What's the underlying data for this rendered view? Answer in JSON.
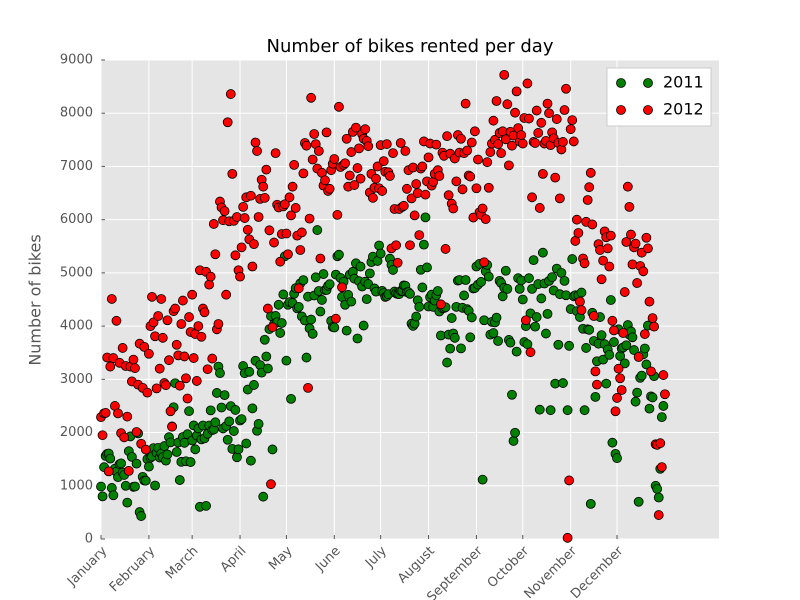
{
  "chart_data": {
    "type": "scatter",
    "title": "Number of bikes rented per day",
    "y_label": "Number of bikes",
    "xlim": [
      0,
      400
    ],
    "ylim": [
      0,
      9000
    ],
    "yticks": [
      0,
      1000,
      2000,
      3000,
      4000,
      5000,
      6000,
      7000,
      8000,
      9000
    ],
    "xticks": [
      {
        "value": 0,
        "label": "January"
      },
      {
        "value": 31,
        "label": "February"
      },
      {
        "value": 59,
        "label": "March"
      },
      {
        "value": 90,
        "label": "April"
      },
      {
        "value": 120,
        "label": "May"
      },
      {
        "value": 151,
        "label": "June"
      },
      {
        "value": 181,
        "label": "July"
      },
      {
        "value": 212,
        "label": "August"
      },
      {
        "value": 243,
        "label": "September"
      },
      {
        "value": 273,
        "label": "October"
      },
      {
        "value": 304,
        "label": "November"
      },
      {
        "value": 334,
        "label": "December"
      }
    ],
    "grid": true,
    "legend": "upper right",
    "x": [
      0,
      1,
      2,
      3,
      4,
      5,
      6,
      7,
      8,
      9,
      10,
      11,
      12,
      13,
      14,
      15,
      16,
      17,
      18,
      19,
      20,
      21,
      22,
      23,
      24,
      25,
      26,
      27,
      28,
      29,
      30,
      31,
      32,
      33,
      34,
      35,
      36,
      37,
      38,
      39,
      40,
      41,
      42,
      43,
      44,
      45,
      46,
      47,
      48,
      49,
      50,
      51,
      52,
      53,
      54,
      55,
      56,
      57,
      58,
      59,
      60,
      61,
      62,
      63,
      64,
      65,
      66,
      67,
      68,
      69,
      70,
      71,
      72,
      73,
      74,
      75,
      76,
      77,
      78,
      79,
      80,
      81,
      82,
      83,
      84,
      85,
      86,
      87,
      88,
      89,
      90,
      91,
      92,
      93,
      94,
      95,
      96,
      97,
      98,
      99,
      100,
      101,
      102,
      103,
      104,
      105,
      106,
      107,
      108,
      109,
      110,
      111,
      112,
      113,
      114,
      115,
      116,
      117,
      118,
      119,
      120,
      121,
      122,
      123,
      124,
      125,
      126,
      127,
      128,
      129,
      130,
      131,
      132,
      133,
      134,
      135,
      136,
      137,
      138,
      139,
      140,
      141,
      142,
      143,
      144,
      145,
      146,
      147,
      148,
      149,
      150,
      151,
      152,
      153,
      154,
      155,
      156,
      157,
      158,
      159,
      160,
      161,
      162,
      163,
      164,
      165,
      166,
      167,
      168,
      169,
      170,
      171,
      172,
      173,
      174,
      175,
      176,
      177,
      178,
      179,
      180,
      181,
      182,
      183,
      184,
      185,
      186,
      187,
      188,
      189,
      190,
      191,
      192,
      193,
      194,
      195,
      196,
      197,
      198,
      199,
      200,
      201,
      202,
      203,
      204,
      205,
      206,
      207,
      208,
      209,
      210,
      211,
      212,
      213,
      214,
      215,
      216,
      217,
      218,
      219,
      220,
      221,
      222,
      223,
      224,
      225,
      226,
      227,
      228,
      229,
      230,
      231,
      232,
      233,
      234,
      235,
      236,
      237,
      238,
      239,
      240,
      241,
      242,
      243,
      244,
      245,
      246,
      247,
      248,
      249,
      250,
      251,
      252,
      253,
      254,
      255,
      256,
      257,
      258,
      259,
      260,
      261,
      262,
      263,
      264,
      265,
      266,
      267,
      268,
      269,
      270,
      271,
      272,
      273,
      274,
      275,
      276,
      277,
      278,
      279,
      280,
      281,
      282,
      283,
      284,
      285,
      286,
      287,
      288,
      289,
      290,
      291,
      292,
      293,
      294,
      295,
      296,
      297,
      298,
      299,
      300,
      301,
      302,
      303,
      304,
      305,
      306,
      307,
      308,
      309,
      310,
      311,
      312,
      313,
      314,
      315,
      316,
      317,
      318,
      319,
      320,
      321,
      322,
      323,
      324,
      325,
      326,
      327,
      328,
      329,
      330,
      331,
      332,
      333,
      334,
      335,
      336,
      337,
      338,
      339,
      340,
      341,
      342,
      343,
      344,
      345,
      346,
      347,
      348,
      349,
      350,
      351,
      352,
      353,
      354,
      355,
      356,
      357,
      358,
      359,
      360,
      361,
      362,
      363,
      364,
      365
    ],
    "series": [
      {
        "name": "2011",
        "color": "#008000",
        "values": [
          985,
          801,
          1349,
          1562,
          1600,
          1606,
          1510,
          959,
          822,
          1321,
          1263,
          1162,
          1406,
          1421,
          1248,
          1204,
          1000,
          683,
          1650,
          1927,
          1543,
          981,
          986,
          1416,
          1985,
          506,
          431,
          1167,
          1098,
          1096,
          1501,
          1360,
          1526,
          1550,
          1708,
          1005,
          1623,
          1712,
          1530,
          1605,
          1538,
          1746,
          1472,
          1589,
          1913,
          1815,
          2115,
          2475,
          2927,
          1635,
          1812,
          1107,
          1450,
          1917,
          1807,
          1461,
          1969,
          2402,
          1446,
          1851,
          2134,
          1685,
          1944,
          2077,
          605,
          1872,
          2133,
          1891,
          623,
          1977,
          2132,
          2417,
          2046,
          2056,
          2192,
          2744,
          3239,
          3117,
          2471,
          2077,
          2703,
          2121,
          1865,
          2210,
          2496,
          1693,
          2028,
          2425,
          1536,
          1685,
          2227,
          2252,
          3249,
          3115,
          1795,
          2808,
          3141,
          1471,
          2455,
          2895,
          3348,
          2034,
          2162,
          3267,
          3126,
          795,
          3744,
          3429,
          3204,
          3944,
          4189,
          1683,
          4036,
          4191,
          4073,
          4400,
          3872,
          4058,
          4595,
          5312,
          3351,
          4401,
          4451,
          2633,
          4433,
          4608,
          4714,
          4333,
          4362,
          4803,
          4182,
          4864,
          4105,
          3409,
          4553,
          3958,
          4123,
          3855,
          4575,
          4917,
          5805,
          4660,
          4274,
          4492,
          4978,
          4677,
          4679,
          4758,
          4788,
          4098,
          3982,
          3974,
          4968,
          5312,
          5342,
          4906,
          4548,
          4833,
          4401,
          3915,
          4586,
          4966,
          4460,
          5020,
          4891,
          5180,
          3767,
          4844,
          5119,
          4744,
          4010,
          4835,
          4507,
          4790,
          4991,
          5202,
          5305,
          4708,
          4648,
          5225,
          5515,
          5362,
          4661,
          4620,
          4549,
          4563,
          4600,
          5267,
          5150,
          5055,
          4649,
          4617,
          4603,
          4602,
          4660,
          4659,
          4765,
          4757,
          4637,
          4638,
          4606,
          4046,
          4005,
          4046,
          4179,
          4485,
          4362,
          5059,
          4727,
          5531,
          6043,
          5103,
          4368,
          4542,
          4590,
          4362,
          4479,
          4582,
          4660,
          4274,
          3824,
          4335,
          4339,
          4354,
          3315,
          3840,
          3577,
          4151,
          3861,
          3780,
          4362,
          4854,
          4867,
          3582,
          4344,
          4576,
          4866,
          4318,
          4288,
          3790,
          4163,
          4707,
          4717,
          5120,
          4780,
          5169,
          4830,
          1115,
          4110,
          5030,
          5150,
          4930,
          3840,
          4080,
          3870,
          4070,
          4160,
          3720,
          4850,
          4810,
          4560,
          4720,
          5040,
          4700,
          3740,
          3690,
          2710,
          1842,
          1996,
          3521,
          4900,
          4700,
          4860,
          4500,
          3700,
          4000,
          3660,
          4900,
          4240,
          4700,
          5240,
          3990,
          4170,
          4790,
          2430,
          4520,
          5380,
          4800,
          3860,
          4230,
          4850,
          2420,
          4920,
          4670,
          2920,
          5080,
          3650,
          4600,
          5000,
          2930,
          4850,
          4580,
          2420,
          3630,
          4320,
          5260,
          4560,
          4580,
          4280,
          4580,
          4170,
          4630,
          3950,
          2420,
          3590,
          3940,
          3930,
          660,
          4250,
          3720,
          2670,
          3340,
          3670,
          4170,
          3830,
          3370,
          3660,
          2920,
          3560,
          3460,
          4490,
          1810,
          3700,
          1600,
          1520,
          3940,
          3440,
          3580,
          3600,
          3300,
          3640,
          4020,
          3840,
          3900,
          3790,
          3550,
          2580,
          2750,
          700,
          3030,
          3070,
          3470,
          3580,
          3280,
          4010,
          2450,
          2680,
          2660,
          3060,
          1000,
          940,
          780,
          1320,
          2290,
          2500,
          null
        ]
      },
      {
        "name": "2012",
        "color": "#ff0000",
        "values": [
          2290,
          1950,
          2360,
          2370,
          3410,
          1270,
          3240,
          4510,
          3400,
          2500,
          4100,
          2360,
          3310,
          1990,
          3590,
          1910,
          3250,
          2300,
          1280,
          3240,
          2960,
          3370,
          3210,
          2010,
          2900,
          3670,
          1790,
          2840,
          3610,
          1680,
          2750,
          3480,
          4000,
          4550,
          4070,
          3810,
          2830,
          4190,
          3200,
          4510,
          3780,
          2930,
          2890,
          4110,
          3360,
          2400,
          2110,
          4280,
          4330,
          3650,
          3450,
          2880,
          4040,
          4480,
          3430,
          3020,
          2640,
          4170,
          3890,
          4590,
          3400,
          3850,
          2970,
          4000,
          5050,
          3800,
          4330,
          4260,
          5020,
          3190,
          4780,
          4930,
          3390,
          5920,
          5350,
          3940,
          4040,
          6340,
          6230,
          5990,
          6160,
          4590,
          7830,
          5970,
          8360,
          6860,
          5980,
          5330,
          6050,
          5050,
          4930,
          5480,
          6240,
          6030,
          6420,
          5810,
          5630,
          6450,
          5120,
          5540,
          7450,
          7290,
          6050,
          6390,
          6750,
          6620,
          6410,
          6940,
          4330,
          5800,
          1030,
          3980,
          5570,
          7250,
          6280,
          6230,
          5210,
          5730,
          6250,
          6290,
          5740,
          5350,
          6420,
          6080,
          6620,
          7030,
          6220,
          5700,
          4710,
          5430,
          5760,
          6870,
          7440,
          7390,
          2840,
          6020,
          8290,
          7130,
          7610,
          7420,
          6960,
          7290,
          5270,
          6880,
          6640,
          6740,
          7640,
          6540,
          6580,
          6930,
          7050,
          7140,
          4140,
          6090,
          8120,
          6990,
          4730,
          7030,
          7060,
          7520,
          6620,
          6830,
          7270,
          7650,
          6650,
          7730,
          6970,
          7340,
          6770,
          7610,
          7520,
          7700,
          7480,
          7380,
          6510,
          6860,
          6410,
          6600,
          6770,
          7000,
          6590,
          7400,
          6540,
          7100,
          6900,
          7420,
          6890,
          6820,
          5460,
          7250,
          6200,
          5520,
          5190,
          6200,
          7440,
          6240,
          6260,
          7290,
          6580,
          6930,
          5520,
          6400,
          6980,
          6080,
          6670,
          6500,
          5710,
          6960,
          7000,
          7470,
          6470,
          6720,
          7170,
          7430,
          6640,
          6710,
          6860,
          7410,
          6930,
          6820,
          4410,
          7260,
          7200,
          5450,
          7570,
          6460,
          7240,
          6300,
          6210,
          7150,
          6720,
          7590,
          7260,
          7520,
          6570,
          7250,
          8180,
          7300,
          6830,
          6810,
          7450,
          6040,
          7660,
          6590,
          7130,
          6140,
          6090,
          6210,
          5200,
          6010,
          7080,
          6600,
          7270,
          7430,
          7860,
          7500,
          8230,
          7420,
          7630,
          7250,
          7660,
          8720,
          7510,
          8170,
          7020,
          7650,
          7390,
          7580,
          8010,
          8410,
          7720,
          7470,
          7590,
          7430,
          7910,
          4110,
          8560,
          7900,
          3510,
          6420,
          7460,
          7440,
          8050,
          7630,
          6220,
          7820,
          6860,
          7430,
          7480,
          8180,
          8000,
          7400,
          7640,
          7530,
          6790,
          7890,
          7440,
          6400,
          7320,
          7460,
          8060,
          8460,
          22,
          1100,
          7700,
          7870,
          7470,
          5600,
          6000,
          5750,
          4460,
          4300,
          5270,
          5180,
          5960,
          6370,
          6610,
          6880,
          5910,
          4190,
          3150,
          2900,
          5540,
          5430,
          4880,
          5230,
          5780,
          5670,
          5460,
          5120,
          5700,
          4100,
          3920,
          2400,
          2650,
          3200,
          3020,
          2800,
          3870,
          4640,
          5580,
          6620,
          6240,
          5720,
          5160,
          5480,
          5550,
          4810,
          3420,
          5130,
          5380,
          5030,
          3850,
          5660,
          5460,
          4460,
          3150,
          4150,
          3990,
          1780,
          1770,
          450,
          1800,
          1350,
          3080,
          2720
        ]
      }
    ]
  }
}
